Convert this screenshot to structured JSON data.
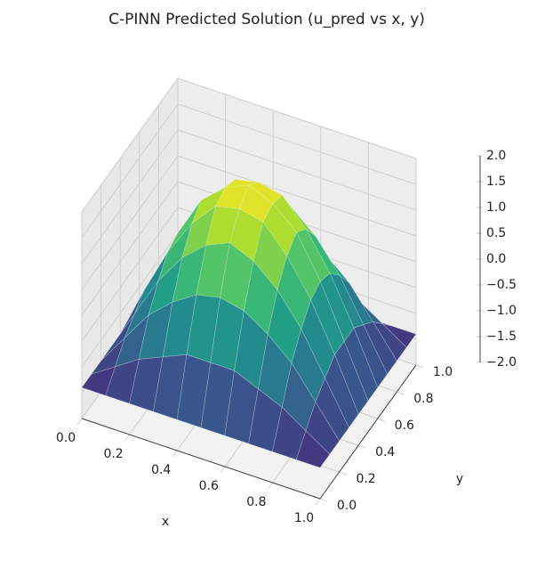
{
  "chart_data": {
    "type": "surface",
    "title": "C-PINN Predicted Solution (u_pred vs x, y)",
    "xlabel": "x",
    "ylabel": "y",
    "x": [
      0,
      0.1,
      0.2,
      0.3,
      0.4,
      0.5,
      0.6,
      0.7,
      0.8,
      0.9,
      1
    ],
    "y": [
      0,
      0.1,
      0.2,
      0.3,
      0.4,
      0.5,
      0.6,
      0.7,
      0.8,
      0.9,
      1
    ],
    "z": [
      [
        -1.4,
        -1.4,
        -1.4,
        -1.4,
        -1.4,
        -1.4,
        -1.4,
        -1.4,
        -1.4,
        -1.4,
        -1.4
      ],
      [
        -1.4,
        -1.1,
        -0.8,
        -0.6,
        -0.4,
        -0.4,
        -0.4,
        -0.6,
        -0.8,
        -1.1,
        -1.4
      ],
      [
        -1.4,
        -0.8,
        -0.2,
        0.2,
        0.5,
        0.6,
        0.5,
        0.2,
        -0.2,
        -0.8,
        -1.4
      ],
      [
        -1.4,
        -0.6,
        0.2,
        0.8,
        1.2,
        1.4,
        1.2,
        0.8,
        0.2,
        -0.6,
        -1.4
      ],
      [
        -1.4,
        -0.4,
        0.5,
        1.2,
        1.7,
        1.8,
        1.7,
        1.2,
        0.5,
        -0.4,
        -1.4
      ],
      [
        -1.4,
        -0.4,
        0.6,
        1.4,
        1.8,
        2.0,
        1.8,
        1.4,
        0.6,
        -0.4,
        -1.4
      ],
      [
        -1.4,
        -0.4,
        0.5,
        1.2,
        1.7,
        1.8,
        1.7,
        1.2,
        0.5,
        -0.4,
        -1.4
      ],
      [
        -1.4,
        -0.6,
        0.2,
        0.8,
        1.2,
        1.4,
        1.2,
        0.8,
        0.2,
        -0.6,
        -1.4
      ],
      [
        -1.4,
        -0.8,
        -0.2,
        0.2,
        0.5,
        0.6,
        0.5,
        0.2,
        -0.2,
        -0.8,
        -1.4
      ],
      [
        -1.4,
        -1.1,
        -0.8,
        -0.6,
        -0.4,
        -0.4,
        -0.4,
        -0.6,
        -0.8,
        -1.1,
        -1.4
      ],
      [
        -1.4,
        -1.4,
        -1.4,
        -1.4,
        -1.4,
        -1.4,
        -1.4,
        -1.4,
        -1.4,
        -1.4,
        -1.4
      ]
    ],
    "colormap": "viridis",
    "xlim": [
      0,
      1
    ],
    "ylim": [
      0,
      1
    ],
    "zlim": [
      -2,
      2
    ],
    "xticks": [
      {
        "value": 0,
        "label": "0.0"
      },
      {
        "value": 0.2,
        "label": "0.2"
      },
      {
        "value": 0.4,
        "label": "0.4"
      },
      {
        "value": 0.6,
        "label": "0.6"
      },
      {
        "value": 0.8,
        "label": "0.8"
      },
      {
        "value": 1,
        "label": "1.0"
      }
    ],
    "yticks": [
      {
        "value": 0,
        "label": "0.0"
      },
      {
        "value": 0.2,
        "label": "0.2"
      },
      {
        "value": 0.4,
        "label": "0.4"
      },
      {
        "value": 0.6,
        "label": "0.6"
      },
      {
        "value": 0.8,
        "label": "0.8"
      },
      {
        "value": 1,
        "label": "1.0"
      }
    ],
    "zticks": [
      {
        "value": -2,
        "label": "−2.0"
      },
      {
        "value": -1.5,
        "label": "−1.5"
      },
      {
        "value": -1,
        "label": "−1.0"
      },
      {
        "value": -0.5,
        "label": "−0.5"
      },
      {
        "value": 0,
        "label": "0.0"
      },
      {
        "value": 0.5,
        "label": "0.5"
      },
      {
        "value": 1,
        "label": "1.0"
      },
      {
        "value": 1.5,
        "label": "1.5"
      },
      {
        "value": 2,
        "label": "2.0"
      }
    ],
    "grid": true
  }
}
